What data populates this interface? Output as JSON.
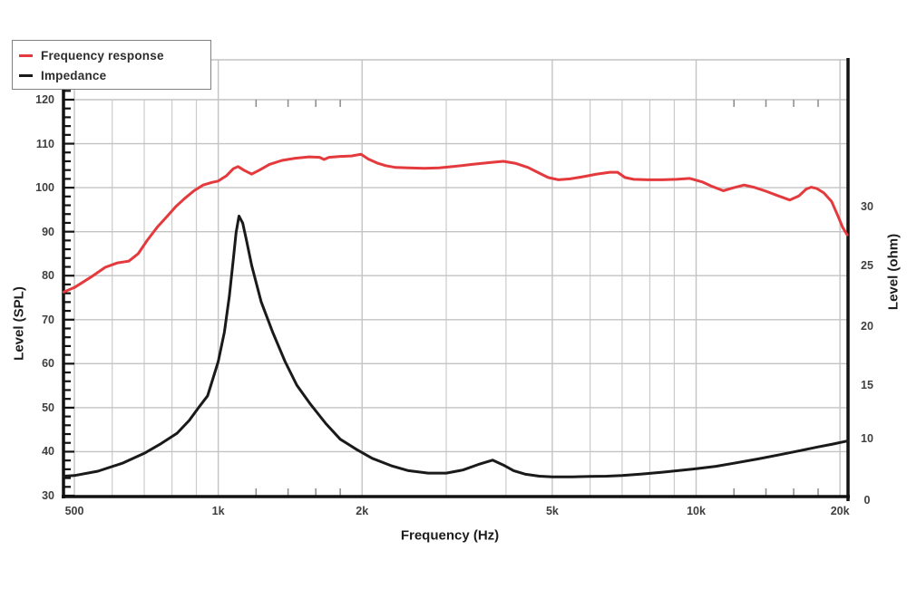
{
  "colors": {
    "frequency_response": "#e43a3d",
    "impedance": "#1a1a1a",
    "grid_major": "#c3c3c3",
    "grid_minor": "#cbcbcb",
    "axis": "#121212",
    "tick_text": "#3f3f3f"
  },
  "legend": {
    "items": [
      {
        "label": "Frequency response",
        "color": "#e43a3d"
      },
      {
        "label": "Impedance",
        "color": "#1a1a1a"
      }
    ]
  },
  "axes": {
    "x": {
      "title": "Frequency (Hz)",
      "scale": "log",
      "ticks": [
        {
          "label": "500",
          "f": 500
        },
        {
          "label": "1k",
          "f": 1000
        },
        {
          "label": "2k",
          "f": 2000
        },
        {
          "label": "5k",
          "f": 5000
        },
        {
          "label": "10k",
          "f": 10000
        },
        {
          "label": "20k",
          "f": 20000
        }
      ],
      "minor_gridlines": [
        600,
        700,
        800,
        900,
        3000,
        4000,
        6000,
        7000,
        8000,
        9000
      ],
      "edge_ticks": [
        1200,
        1400,
        1600,
        1800,
        12000,
        14000,
        16000,
        18000
      ]
    },
    "y_left": {
      "title": "Level (SPL)",
      "unit": "dB",
      "ticks": [
        30,
        40,
        50,
        60,
        70,
        80,
        90,
        100,
        110,
        120
      ],
      "minor_tick_step": 2,
      "range": [
        30,
        129
      ]
    },
    "y_right": {
      "title": "Level (ohm)",
      "unit": "ohm",
      "scale": "nonlinear",
      "ticks": [
        {
          "label": "0",
          "value": 0
        },
        {
          "label": "10",
          "value": 10
        },
        {
          "label": "15",
          "value": 15
        },
        {
          "label": "20",
          "value": 20
        },
        {
          "label": "25",
          "value": 25
        },
        {
          "label": "30",
          "value": 30
        }
      ]
    }
  },
  "chart_data": {
    "type": "line",
    "title": "",
    "xlabel": "Frequency (Hz)",
    "x_scale": "log",
    "x_range_hz": [
      475,
      20700
    ],
    "ylabel_left": "Level (SPL)",
    "ylabel_right": "Level (ohm)",
    "ylim_left": [
      30,
      129
    ],
    "grid": true,
    "legend_position": "top-left",
    "series": [
      {
        "name": "Frequency response",
        "axis": "left",
        "unit": "dB SPL",
        "color": "#e43a3d",
        "points": [
          [
            475,
            76.3
          ],
          [
            500,
            77.3
          ],
          [
            540,
            79.6
          ],
          [
            580,
            81.9
          ],
          [
            615,
            82.9
          ],
          [
            650,
            83.3
          ],
          [
            680,
            85.0
          ],
          [
            710,
            88.0
          ],
          [
            745,
            91.0
          ],
          [
            780,
            93.4
          ],
          [
            815,
            95.7
          ],
          [
            850,
            97.5
          ],
          [
            890,
            99.3
          ],
          [
            930,
            100.6
          ],
          [
            970,
            101.2
          ],
          [
            1000,
            101.5
          ],
          [
            1040,
            102.7
          ],
          [
            1075,
            104.3
          ],
          [
            1100,
            104.8
          ],
          [
            1135,
            103.9
          ],
          [
            1175,
            103.1
          ],
          [
            1220,
            104.0
          ],
          [
            1280,
            105.3
          ],
          [
            1360,
            106.2
          ],
          [
            1450,
            106.7
          ],
          [
            1550,
            107.0
          ],
          [
            1630,
            106.9
          ],
          [
            1665,
            106.4
          ],
          [
            1705,
            106.9
          ],
          [
            1800,
            107.1
          ],
          [
            1900,
            107.2
          ],
          [
            1990,
            107.6
          ],
          [
            2060,
            106.5
          ],
          [
            2150,
            105.6
          ],
          [
            2240,
            105.0
          ],
          [
            2350,
            104.6
          ],
          [
            2500,
            104.5
          ],
          [
            2700,
            104.4
          ],
          [
            2900,
            104.5
          ],
          [
            3100,
            104.8
          ],
          [
            3400,
            105.3
          ],
          [
            3700,
            105.7
          ],
          [
            3950,
            106.0
          ],
          [
            4200,
            105.5
          ],
          [
            4450,
            104.6
          ],
          [
            4700,
            103.3
          ],
          [
            4900,
            102.3
          ],
          [
            5150,
            101.8
          ],
          [
            5450,
            102.0
          ],
          [
            5800,
            102.5
          ],
          [
            6200,
            103.1
          ],
          [
            6600,
            103.5
          ],
          [
            6850,
            103.5
          ],
          [
            7100,
            102.3
          ],
          [
            7400,
            101.9
          ],
          [
            7900,
            101.8
          ],
          [
            8500,
            101.8
          ],
          [
            9100,
            101.9
          ],
          [
            9700,
            102.1
          ],
          [
            10300,
            101.3
          ],
          [
            10800,
            100.3
          ],
          [
            11400,
            99.3
          ],
          [
            11900,
            99.9
          ],
          [
            12600,
            100.6
          ],
          [
            13200,
            100.1
          ],
          [
            14000,
            99.2
          ],
          [
            14800,
            98.2
          ],
          [
            15700,
            97.2
          ],
          [
            16400,
            98.1
          ],
          [
            17000,
            99.7
          ],
          [
            17400,
            100.1
          ],
          [
            17900,
            99.8
          ],
          [
            18500,
            98.8
          ],
          [
            19200,
            96.9
          ],
          [
            19800,
            93.6
          ],
          [
            20250,
            91.0
          ],
          [
            20700,
            89.3
          ]
        ]
      },
      {
        "name": "Impedance",
        "axis": "right",
        "unit": "ohm",
        "color": "#1a1a1a",
        "points": [
          [
            475,
            3.9
          ],
          [
            500,
            4.0
          ],
          [
            560,
            4.7
          ],
          [
            630,
            6.0
          ],
          [
            700,
            7.6
          ],
          [
            760,
            9.2
          ],
          [
            820,
            10.5
          ],
          [
            870,
            11.7
          ],
          [
            910,
            12.9
          ],
          [
            950,
            14.0
          ],
          [
            1000,
            17.0
          ],
          [
            1030,
            19.5
          ],
          [
            1055,
            22.5
          ],
          [
            1075,
            25.5
          ],
          [
            1090,
            27.8
          ],
          [
            1105,
            29.2
          ],
          [
            1125,
            28.6
          ],
          [
            1145,
            27.2
          ],
          [
            1175,
            25.0
          ],
          [
            1230,
            22.0
          ],
          [
            1300,
            19.5
          ],
          [
            1380,
            17.0
          ],
          [
            1460,
            15.0
          ],
          [
            1560,
            13.2
          ],
          [
            1680,
            11.4
          ],
          [
            1800,
            9.9
          ],
          [
            1950,
            8.2
          ],
          [
            2100,
            6.8
          ],
          [
            2300,
            5.6
          ],
          [
            2500,
            4.8
          ],
          [
            2750,
            4.4
          ],
          [
            3000,
            4.4
          ],
          [
            3250,
            4.9
          ],
          [
            3500,
            5.8
          ],
          [
            3750,
            6.5
          ],
          [
            3950,
            5.7
          ],
          [
            4150,
            4.8
          ],
          [
            4400,
            4.2
          ],
          [
            4700,
            3.9
          ],
          [
            5000,
            3.8
          ],
          [
            5500,
            3.8
          ],
          [
            6000,
            3.85
          ],
          [
            6500,
            3.9
          ],
          [
            7000,
            4.0
          ],
          [
            7700,
            4.25
          ],
          [
            8500,
            4.55
          ],
          [
            9300,
            4.85
          ],
          [
            10000,
            5.1
          ],
          [
            11000,
            5.5
          ],
          [
            12000,
            6.0
          ],
          [
            13500,
            6.7
          ],
          [
            15000,
            7.4
          ],
          [
            16500,
            8.05
          ],
          [
            18000,
            8.65
          ],
          [
            19300,
            9.1
          ],
          [
            20700,
            9.6
          ]
        ]
      }
    ]
  }
}
